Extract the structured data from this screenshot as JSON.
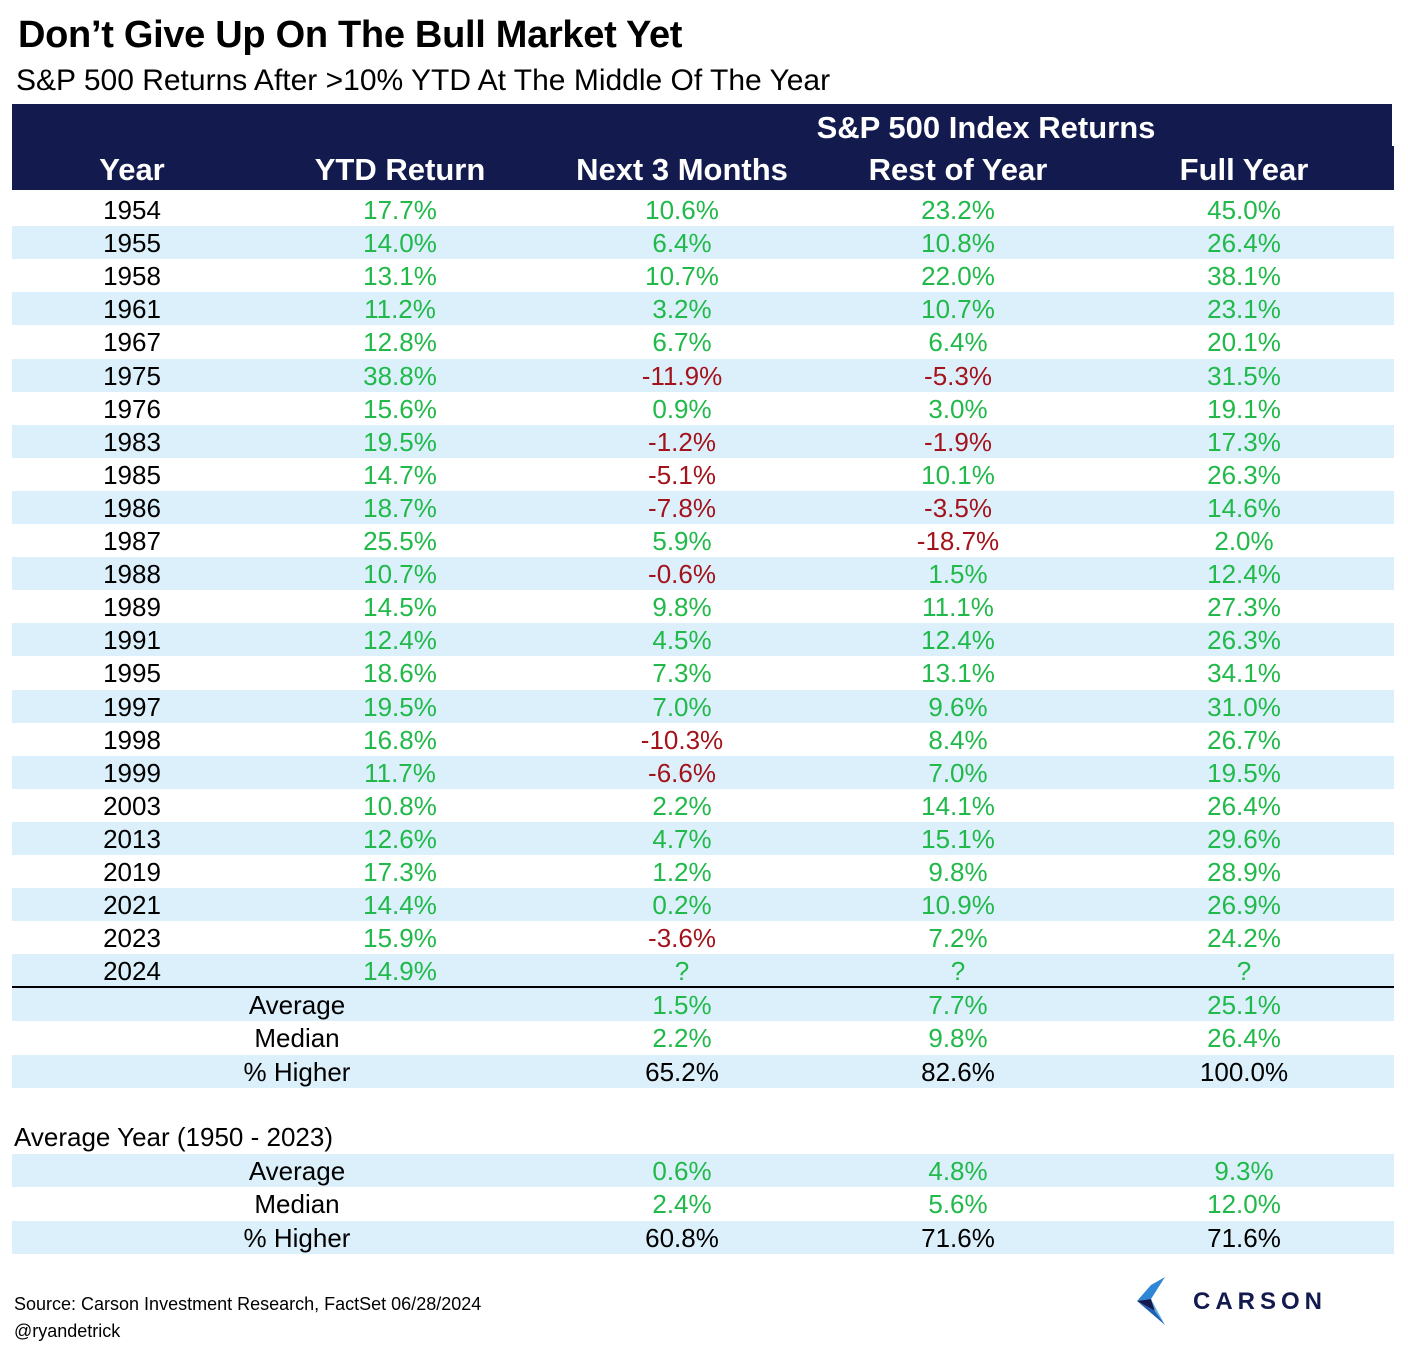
{
  "title": "Don’t Give Up On The Bull Market Yet",
  "subtitle": "S&P 500 Returns After >10% YTD At The Middle Of The Year",
  "header": {
    "group_label": "S&P 500 Index Returns",
    "columns": [
      "Year",
      "YTD Return",
      "Next 3 Months",
      "Rest of Year",
      "Full Year"
    ]
  },
  "chart_data": {
    "type": "table",
    "title": "Don’t Give Up On The Bull Market Yet",
    "subtitle": "S&P 500 Returns After >10% YTD At The Middle Of The Year",
    "columns": [
      "Year",
      "YTD Return",
      "Next 3 Months",
      "Rest of Year",
      "Full Year"
    ],
    "rows": [
      [
        "1954",
        "17.7%",
        "10.6%",
        "23.2%",
        "45.0%"
      ],
      [
        "1955",
        "14.0%",
        "6.4%",
        "10.8%",
        "26.4%"
      ],
      [
        "1958",
        "13.1%",
        "10.7%",
        "22.0%",
        "38.1%"
      ],
      [
        "1961",
        "11.2%",
        "3.2%",
        "10.7%",
        "23.1%"
      ],
      [
        "1967",
        "12.8%",
        "6.7%",
        "6.4%",
        "20.1%"
      ],
      [
        "1975",
        "38.8%",
        "-11.9%",
        "-5.3%",
        "31.5%"
      ],
      [
        "1976",
        "15.6%",
        "0.9%",
        "3.0%",
        "19.1%"
      ],
      [
        "1983",
        "19.5%",
        "-1.2%",
        "-1.9%",
        "17.3%"
      ],
      [
        "1985",
        "14.7%",
        "-5.1%",
        "10.1%",
        "26.3%"
      ],
      [
        "1986",
        "18.7%",
        "-7.8%",
        "-3.5%",
        "14.6%"
      ],
      [
        "1987",
        "25.5%",
        "5.9%",
        "-18.7%",
        "2.0%"
      ],
      [
        "1988",
        "10.7%",
        "-0.6%",
        "1.5%",
        "12.4%"
      ],
      [
        "1989",
        "14.5%",
        "9.8%",
        "11.1%",
        "27.3%"
      ],
      [
        "1991",
        "12.4%",
        "4.5%",
        "12.4%",
        "26.3%"
      ],
      [
        "1995",
        "18.6%",
        "7.3%",
        "13.1%",
        "34.1%"
      ],
      [
        "1997",
        "19.5%",
        "7.0%",
        "9.6%",
        "31.0%"
      ],
      [
        "1998",
        "16.8%",
        "-10.3%",
        "8.4%",
        "26.7%"
      ],
      [
        "1999",
        "11.7%",
        "-6.6%",
        "7.0%",
        "19.5%"
      ],
      [
        "2003",
        "10.8%",
        "2.2%",
        "14.1%",
        "26.4%"
      ],
      [
        "2013",
        "12.6%",
        "4.7%",
        "15.1%",
        "29.6%"
      ],
      [
        "2019",
        "17.3%",
        "1.2%",
        "9.8%",
        "28.9%"
      ],
      [
        "2021",
        "14.4%",
        "0.2%",
        "10.9%",
        "26.9%"
      ],
      [
        "2023",
        "15.9%",
        "-3.6%",
        "7.2%",
        "24.2%"
      ],
      [
        "2024",
        "14.9%",
        "?",
        "?",
        "?"
      ]
    ],
    "summary": [
      [
        "Average",
        "1.5%",
        "7.7%",
        "25.1%"
      ],
      [
        "Median",
        "2.2%",
        "9.8%",
        "26.4%"
      ],
      [
        "% Higher",
        "65.2%",
        "82.6%",
        "100.0%"
      ]
    ],
    "average_year_label": "Average Year (1950 - 2023)",
    "average_year": [
      [
        "Average",
        "0.6%",
        "4.8%",
        "9.3%"
      ],
      [
        "Median",
        "2.4%",
        "5.6%",
        "12.0%"
      ],
      [
        "% Higher",
        "60.8%",
        "71.6%",
        "71.6%"
      ]
    ]
  },
  "colors": {
    "header_bg": "#131a4e",
    "stripe_bg": "#dbf0fb",
    "positive": "#20b94a",
    "negative": "#a4131c"
  },
  "footer": {
    "source": "Source: Carson Investment Research, FactSet 06/28/2024",
    "handle": "@ryandetrick"
  },
  "logo": {
    "icon": "carson-chevron-icon",
    "text": "CARSON"
  }
}
